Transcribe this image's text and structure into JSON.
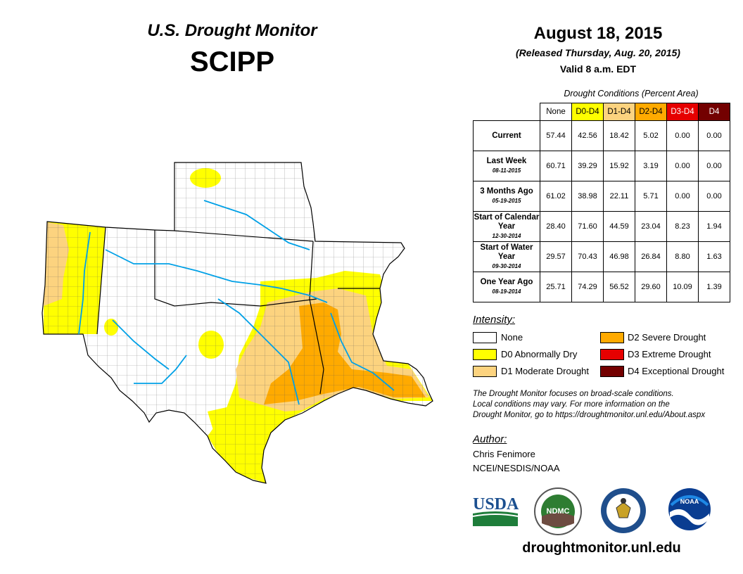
{
  "header": {
    "title": "U.S. Drought Monitor",
    "region": "SCIPP",
    "date": "August 18, 2015",
    "released": "(Released Thursday, Aug. 20, 2015)",
    "valid": "Valid 8 a.m. EDT"
  },
  "table": {
    "caption": "Drought Conditions (Percent Area)",
    "columns": [
      "None",
      "D0-D4",
      "D1-D4",
      "D2-D4",
      "D3-D4",
      "D4"
    ],
    "rows": [
      {
        "label": "Current",
        "sub": "",
        "values": [
          "57.44",
          "42.56",
          "18.42",
          "5.02",
          "0.00",
          "0.00"
        ]
      },
      {
        "label": "Last Week",
        "sub": "08-11-2015",
        "values": [
          "60.71",
          "39.29",
          "15.92",
          "3.19",
          "0.00",
          "0.00"
        ]
      },
      {
        "label": "3 Months Ago",
        "sub": "05-19-2015",
        "values": [
          "61.02",
          "38.98",
          "22.11",
          "5.71",
          "0.00",
          "0.00"
        ]
      },
      {
        "label": "Start of Calendar Year",
        "sub": "12-30-2014",
        "values": [
          "28.40",
          "71.60",
          "44.59",
          "23.04",
          "8.23",
          "1.94"
        ]
      },
      {
        "label": "Start of Water Year",
        "sub": "09-30-2014",
        "values": [
          "29.57",
          "70.43",
          "46.98",
          "26.84",
          "8.80",
          "1.63"
        ]
      },
      {
        "label": "One Year Ago",
        "sub": "08-19-2014",
        "values": [
          "25.71",
          "74.29",
          "56.52",
          "29.60",
          "10.09",
          "1.39"
        ]
      }
    ]
  },
  "legend": {
    "title": "Intensity:",
    "items": [
      {
        "label": "None",
        "color": "#ffffff"
      },
      {
        "label": "D0 Abnormally Dry",
        "color": "#ffff00"
      },
      {
        "label": "D1 Moderate Drought",
        "color": "#fcd37f"
      },
      {
        "label": "D2 Severe Drought",
        "color": "#ffaa00"
      },
      {
        "label": "D3 Extreme Drought",
        "color": "#e60000"
      },
      {
        "label": "D4 Exceptional Drought",
        "color": "#730000"
      }
    ]
  },
  "note": {
    "line1": "The Drought Monitor focuses on broad-scale conditions.",
    "line2": "Local conditions may vary. For more information on the",
    "line3": "Drought Monitor, go to https://droughtmonitor.unl.edu/About.aspx"
  },
  "author": {
    "label": "Author:",
    "name": "Chris Fenimore",
    "org": "NCEI/NESDIS/NOAA"
  },
  "logos": {
    "usda": "USDA",
    "ndmc": "NDMC",
    "noaa": "NOAA"
  },
  "footer": {
    "website": "droughtmonitor.unl.edu"
  }
}
